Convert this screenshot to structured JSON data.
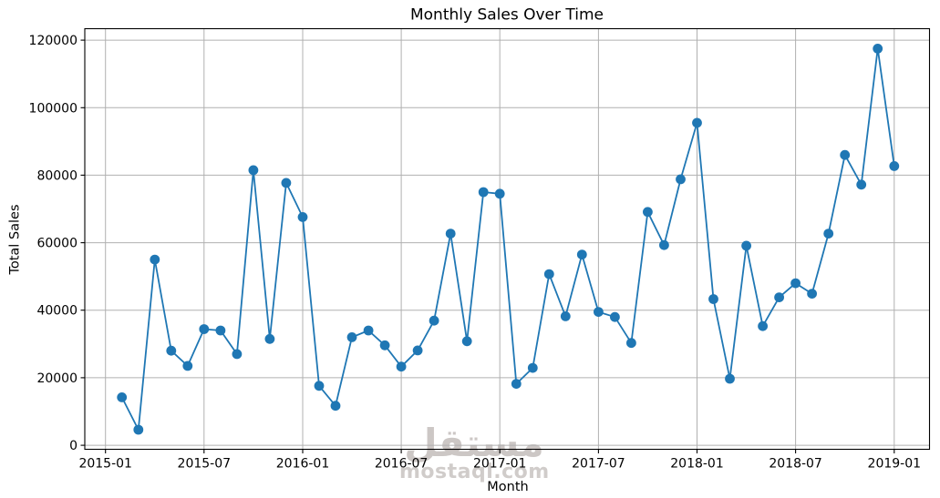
{
  "chart_data": {
    "type": "line",
    "title": "Monthly Sales Over Time",
    "xlabel": "Month",
    "ylabel": "Total Sales",
    "x": [
      "2015-02",
      "2015-03",
      "2015-04",
      "2015-05",
      "2015-06",
      "2015-07",
      "2015-08",
      "2015-09",
      "2015-10",
      "2015-11",
      "2015-12",
      "2016-01",
      "2016-02",
      "2016-03",
      "2016-04",
      "2016-05",
      "2016-06",
      "2016-07",
      "2016-08",
      "2016-09",
      "2016-10",
      "2016-11",
      "2016-12",
      "2017-01",
      "2017-02",
      "2017-03",
      "2017-04",
      "2017-05",
      "2017-06",
      "2017-07",
      "2017-08",
      "2017-09",
      "2017-10",
      "2017-11",
      "2017-12",
      "2018-01",
      "2018-02",
      "2018-03",
      "2018-04",
      "2018-05",
      "2018-06",
      "2018-07",
      "2018-08",
      "2018-09",
      "2018-10",
      "2018-11",
      "2018-12",
      "2019-01"
    ],
    "values": [
      14200,
      4600,
      55000,
      28000,
      23500,
      34400,
      34000,
      27000,
      81500,
      31500,
      77700,
      67600,
      17600,
      11700,
      32000,
      34000,
      29600,
      23300,
      28100,
      36900,
      62700,
      30800,
      75000,
      74500,
      18200,
      22900,
      50700,
      38200,
      56500,
      39500,
      38000,
      30300,
      69100,
      59300,
      78800,
      95500,
      43300,
      19700,
      59100,
      35300,
      43800,
      48000,
      44900,
      62700,
      86000,
      77200,
      117500,
      82700
    ],
    "series_name": "Total Sales",
    "x_tick_labels": [
      "2015-01",
      "2015-07",
      "2016-01",
      "2016-07",
      "2017-01",
      "2017-07",
      "2018-01",
      "2018-07",
      "2019-01"
    ],
    "y_ticks": [
      0,
      20000,
      40000,
      60000,
      80000,
      100000,
      120000
    ],
    "y_tick_labels": [
      "0",
      "20000",
      "40000",
      "60000",
      "80000",
      "100000",
      "120000"
    ],
    "ylim": [
      -1200,
      123400
    ],
    "grid": true,
    "legend": "none",
    "line_color": "#1f77b4",
    "marker": "o",
    "grid_color": "#b0b0b0",
    "background": "#ffffff"
  },
  "watermark": {
    "arabic": "مستقل",
    "site": "mostaql.com"
  }
}
